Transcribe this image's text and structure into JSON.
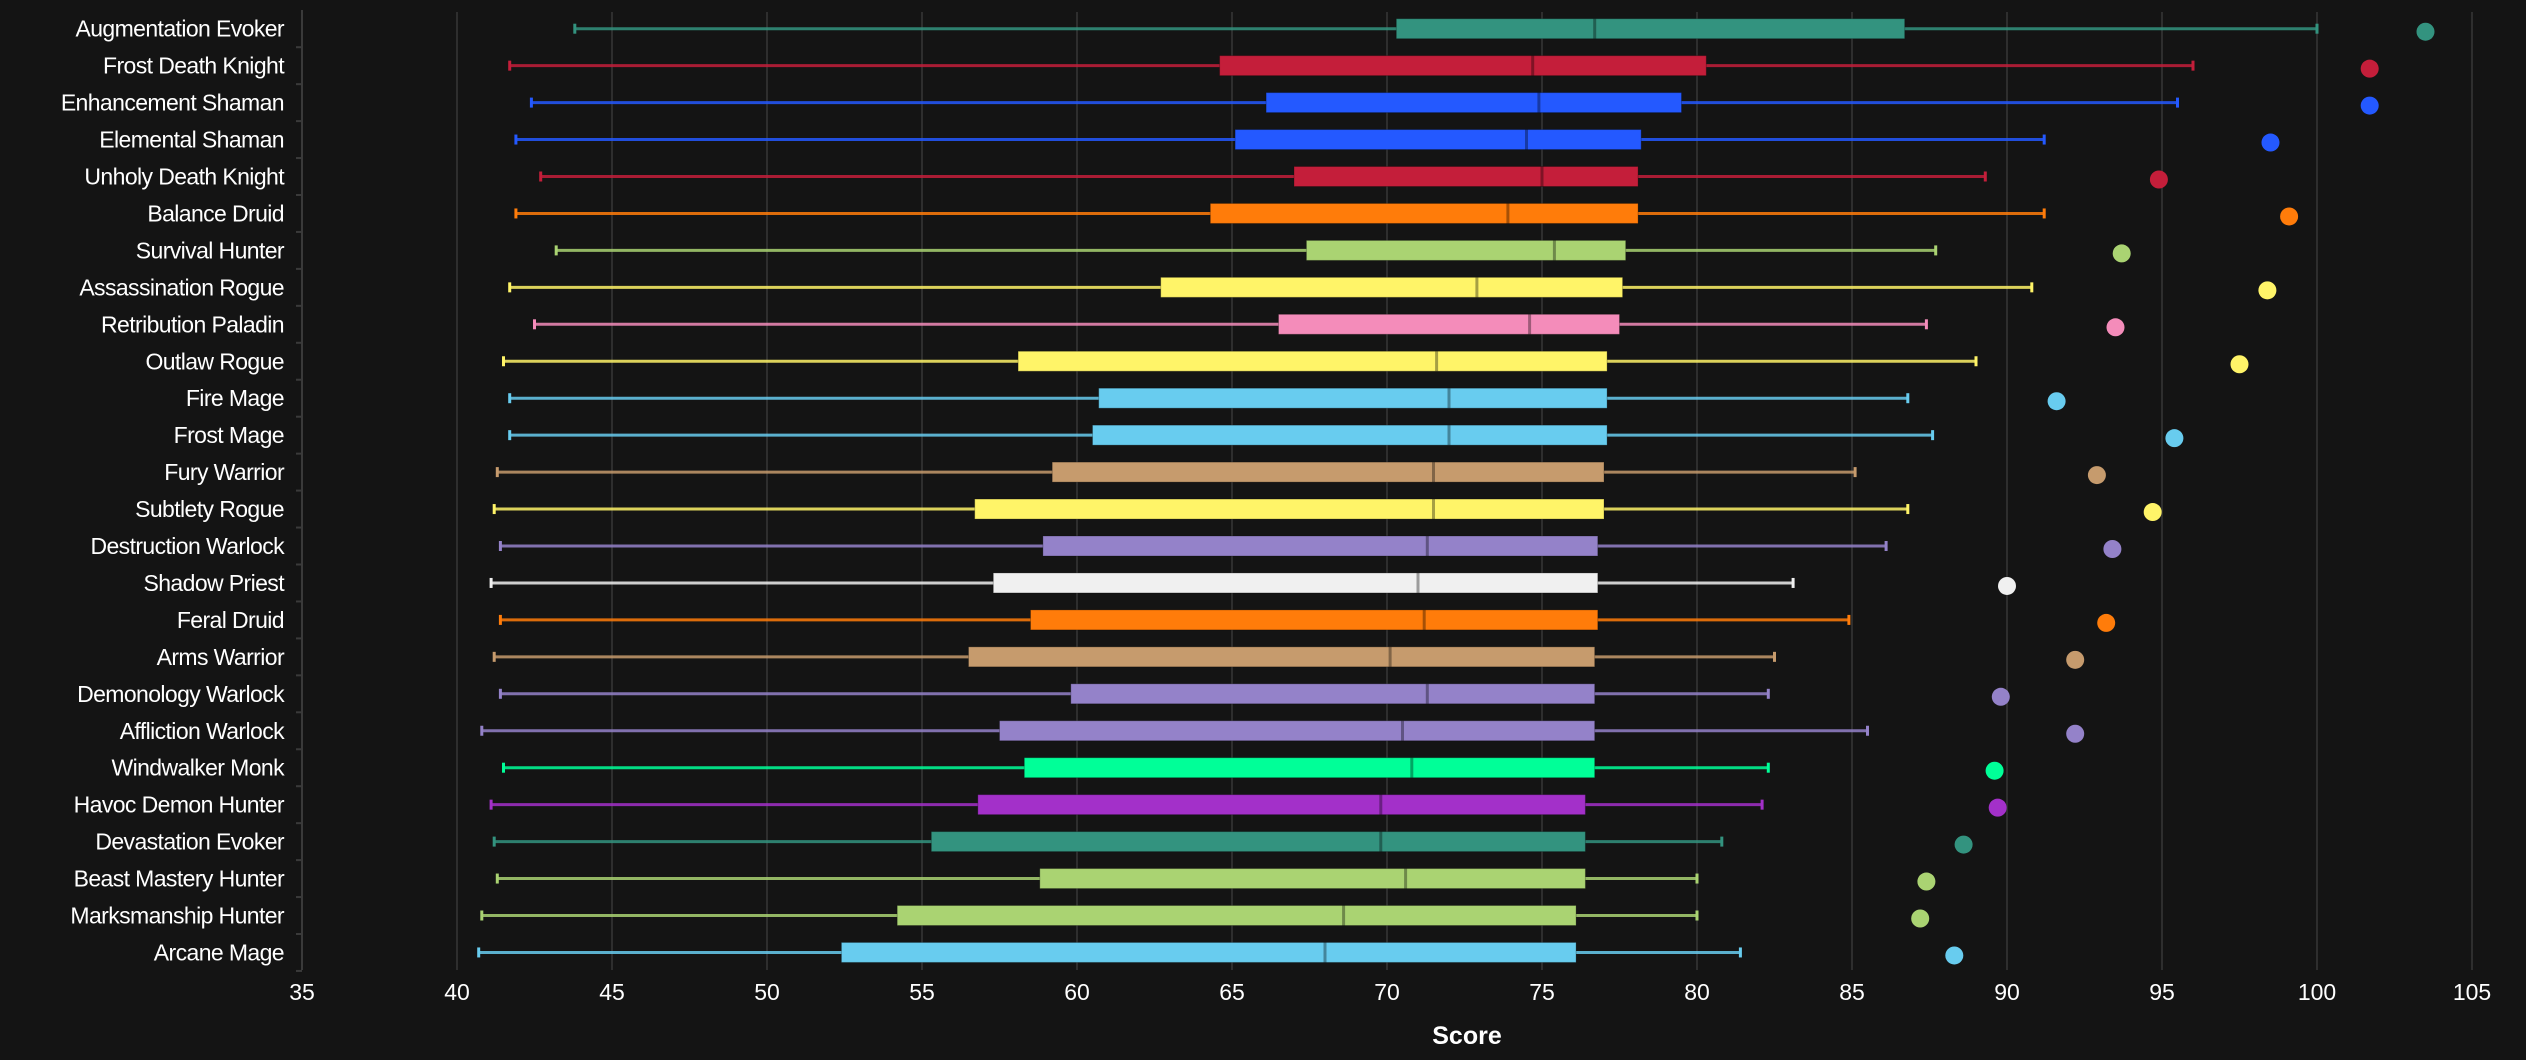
{
  "chart_data": {
    "type": "boxplot",
    "title": "",
    "xlabel": "Score",
    "ylabel": "",
    "xlim": [
      35,
      105
    ],
    "xticks": [
      35,
      40,
      45,
      50,
      55,
      60,
      65,
      70,
      75,
      80,
      85,
      90,
      95,
      100,
      105
    ],
    "grid": true,
    "legend": "none",
    "fields": [
      "low",
      "q1",
      "median",
      "q3",
      "high",
      "max_point"
    ],
    "series": [
      {
        "name": "Augmentation Evoker",
        "color": "#33937F",
        "low": 43.8,
        "q1": 70.3,
        "median": 76.7,
        "q3": 86.7,
        "high": 100.0,
        "max_point": 103.5
      },
      {
        "name": "Frost Death Knight",
        "color": "#C41E3A",
        "low": 41.7,
        "q1": 64.6,
        "median": 74.7,
        "q3": 80.3,
        "high": 96.0,
        "max_point": 101.7
      },
      {
        "name": "Enhancement Shaman",
        "color": "#2459FF",
        "low": 42.4,
        "q1": 66.1,
        "median": 74.9,
        "q3": 79.5,
        "high": 95.5,
        "max_point": 101.7
      },
      {
        "name": "Elemental Shaman",
        "color": "#2459FF",
        "low": 41.9,
        "q1": 65.1,
        "median": 74.5,
        "q3": 78.2,
        "high": 91.2,
        "max_point": 98.5
      },
      {
        "name": "Unholy Death Knight",
        "color": "#C41E3A",
        "low": 42.7,
        "q1": 67.0,
        "median": 75.0,
        "q3": 78.1,
        "high": 89.3,
        "max_point": 94.9
      },
      {
        "name": "Balance Druid",
        "color": "#FF7C0A",
        "low": 41.9,
        "q1": 64.3,
        "median": 73.9,
        "q3": 78.1,
        "high": 91.2,
        "max_point": 99.1
      },
      {
        "name": "Survival Hunter",
        "color": "#AAD372",
        "low": 43.2,
        "q1": 67.4,
        "median": 75.4,
        "q3": 77.7,
        "high": 87.7,
        "max_point": 93.7
      },
      {
        "name": "Assassination Rogue",
        "color": "#FFF468",
        "low": 41.7,
        "q1": 62.7,
        "median": 72.9,
        "q3": 77.6,
        "high": 90.8,
        "max_point": 98.4
      },
      {
        "name": "Retribution Paladin",
        "color": "#F48CBA",
        "low": 42.5,
        "q1": 66.5,
        "median": 74.6,
        "q3": 77.5,
        "high": 87.4,
        "max_point": 93.5
      },
      {
        "name": "Outlaw Rogue",
        "color": "#FFF468",
        "low": 41.5,
        "q1": 58.1,
        "median": 71.6,
        "q3": 77.1,
        "high": 89.0,
        "max_point": 97.5
      },
      {
        "name": "Fire Mage",
        "color": "#68CCEF",
        "low": 41.7,
        "q1": 60.7,
        "median": 72.0,
        "q3": 77.1,
        "high": 86.8,
        "max_point": 91.6
      },
      {
        "name": "Frost Mage",
        "color": "#68CCEF",
        "low": 41.7,
        "q1": 60.5,
        "median": 72.0,
        "q3": 77.1,
        "high": 87.6,
        "max_point": 95.4
      },
      {
        "name": "Fury Warrior",
        "color": "#C69B6D",
        "low": 41.3,
        "q1": 59.2,
        "median": 71.5,
        "q3": 77.0,
        "high": 85.1,
        "max_point": 92.9
      },
      {
        "name": "Subtlety Rogue",
        "color": "#FFF468",
        "low": 41.2,
        "q1": 56.7,
        "median": 71.5,
        "q3": 77.0,
        "high": 86.8,
        "max_point": 94.7
      },
      {
        "name": "Destruction Warlock",
        "color": "#9482C9",
        "low": 41.4,
        "q1": 58.9,
        "median": 71.3,
        "q3": 76.8,
        "high": 86.1,
        "max_point": 93.4
      },
      {
        "name": "Shadow Priest",
        "color": "#F0F0F0",
        "low": 41.1,
        "q1": 57.3,
        "median": 71.0,
        "q3": 76.8,
        "high": 83.1,
        "max_point": 90.0
      },
      {
        "name": "Feral Druid",
        "color": "#FF7C0A",
        "low": 41.4,
        "q1": 58.5,
        "median": 71.2,
        "q3": 76.8,
        "high": 84.9,
        "max_point": 93.2
      },
      {
        "name": "Arms Warrior",
        "color": "#C69B6D",
        "low": 41.2,
        "q1": 56.5,
        "median": 70.1,
        "q3": 76.7,
        "high": 82.5,
        "max_point": 92.2
      },
      {
        "name": "Demonology Warlock",
        "color": "#9482C9",
        "low": 41.4,
        "q1": 59.8,
        "median": 71.3,
        "q3": 76.7,
        "high": 82.3,
        "max_point": 89.8
      },
      {
        "name": "Affliction Warlock",
        "color": "#9482C9",
        "low": 40.8,
        "q1": 57.5,
        "median": 70.5,
        "q3": 76.7,
        "high": 85.5,
        "max_point": 92.2
      },
      {
        "name": "Windwalker Monk",
        "color": "#00FF98",
        "low": 41.5,
        "q1": 58.3,
        "median": 70.8,
        "q3": 76.7,
        "high": 82.3,
        "max_point": 89.6
      },
      {
        "name": "Havoc Demon Hunter",
        "color": "#A330C9",
        "low": 41.1,
        "q1": 56.8,
        "median": 69.8,
        "q3": 76.4,
        "high": 82.1,
        "max_point": 89.7
      },
      {
        "name": "Devastation Evoker",
        "color": "#33937F",
        "low": 41.2,
        "q1": 55.3,
        "median": 69.8,
        "q3": 76.4,
        "high": 80.8,
        "max_point": 88.6
      },
      {
        "name": "Beast Mastery Hunter",
        "color": "#AAD372",
        "low": 41.3,
        "q1": 58.8,
        "median": 70.6,
        "q3": 76.4,
        "high": 80.0,
        "max_point": 87.4
      },
      {
        "name": "Marksmanship Hunter",
        "color": "#AAD372",
        "low": 40.8,
        "q1": 54.2,
        "median": 68.6,
        "q3": 76.1,
        "high": 80.0,
        "max_point": 87.2
      },
      {
        "name": "Arcane Mage",
        "color": "#68CCEF",
        "low": 40.7,
        "q1": 52.4,
        "median": 68.0,
        "q3": 76.1,
        "high": 81.4,
        "max_point": 88.3
      }
    ]
  }
}
